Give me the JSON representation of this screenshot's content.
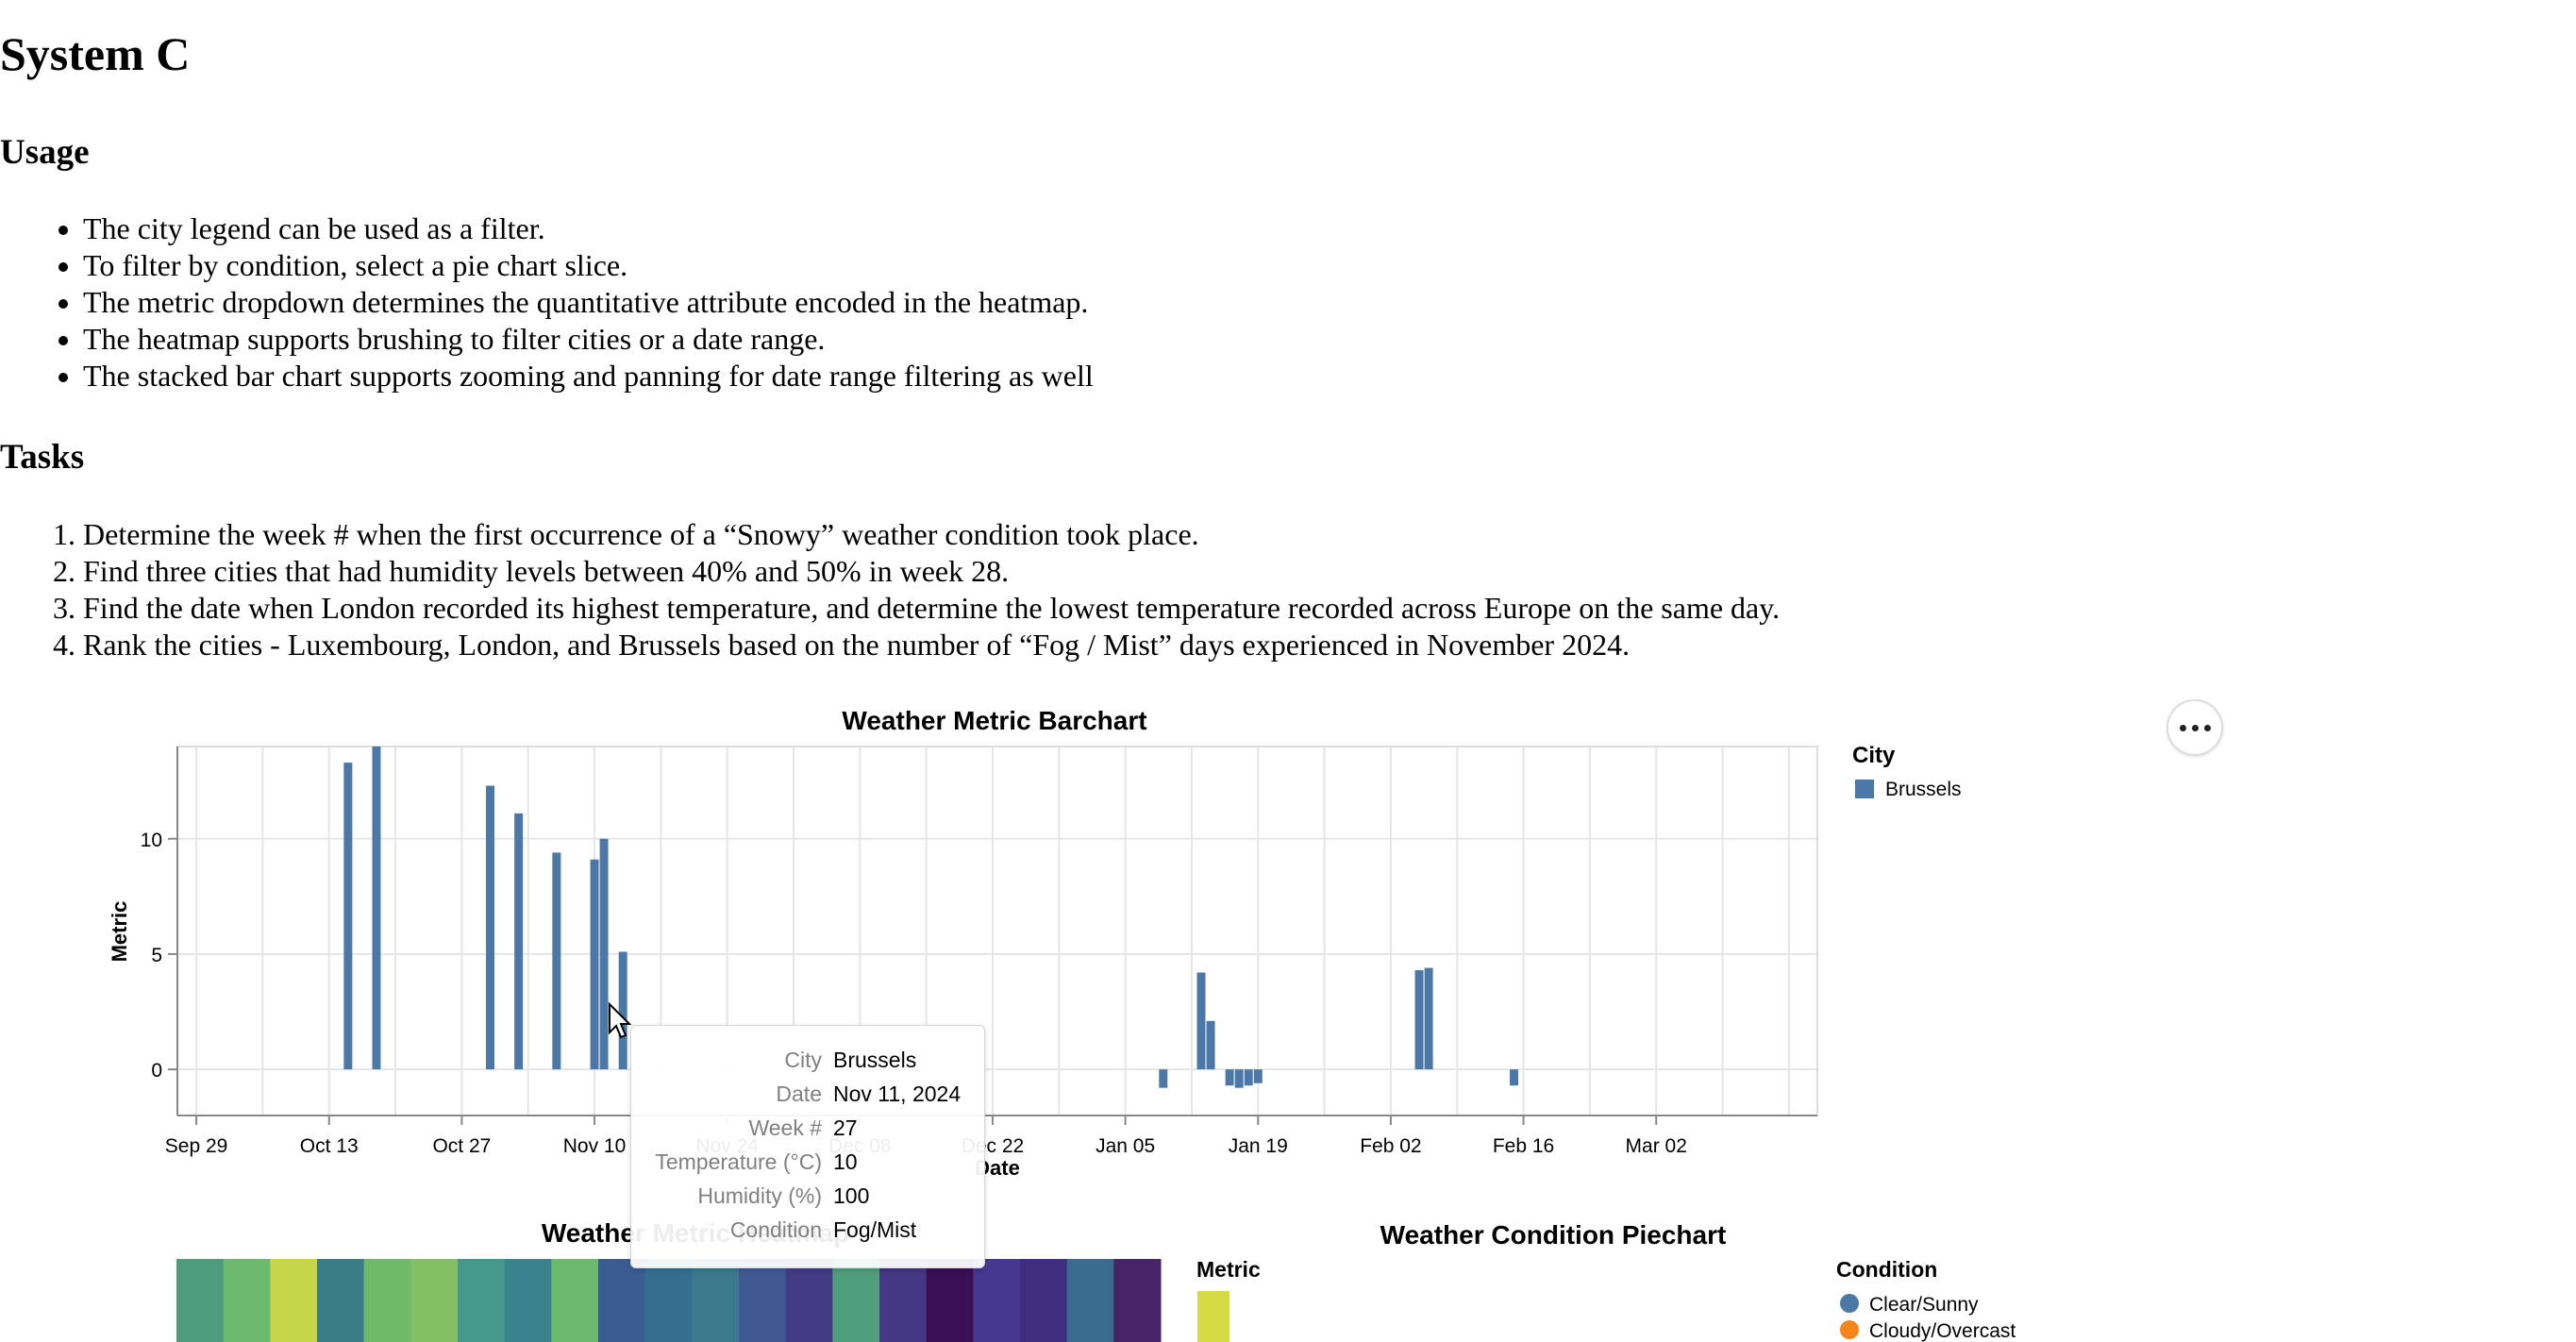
{
  "page_title": "System C",
  "usage": {
    "heading": "Usage",
    "items": [
      "The city legend can be used as a filter.",
      "To filter by condition, select a pie chart slice.",
      "The metric dropdown determines the quantitative attribute encoded in the heatmap.",
      "The heatmap supports brushing to filter cities or a date range.",
      "The stacked bar chart supports zooming and panning for date range filtering as well"
    ]
  },
  "tasks": {
    "heading": "Tasks",
    "items": [
      "Determine the week # when the first occurrence of a “Snowy” weather condition took place.",
      "Find three cities that had humidity levels between 40% and 50% in week 28.",
      "Find the date when London recorded its highest temperature, and determine the lowest temperature recorded across Europe on the same day.",
      "Rank the cities - Luxembourg, London, and Brussels based on the number of “Fog / Mist” days experienced in November 2024."
    ]
  },
  "chart_data": [
    {
      "type": "bar",
      "title": "Weather Metric Barchart",
      "xlabel": "Date",
      "ylabel": "Metric",
      "xlim": [
        "2024-09-27",
        "2025-03-19"
      ],
      "ylim": [
        -2,
        14
      ],
      "y_ticks": [
        0,
        5,
        10
      ],
      "x_ticks": [
        "2024-09-29",
        "2024-10-13",
        "2024-10-27",
        "2024-11-10",
        "2024-11-24",
        "2024-12-08",
        "2024-12-22",
        "2025-01-05",
        "2025-01-19",
        "2025-02-02",
        "2025-02-16",
        "2025-03-02"
      ],
      "x_tick_labels": [
        "Sep 29",
        "Oct 13",
        "Oct 27",
        "Nov 10",
        "Nov 24",
        "Dec 08",
        "Dec 22",
        "Jan 05",
        "Jan 19",
        "Feb 02",
        "Feb 16",
        "Mar 02"
      ],
      "grid": true,
      "color": "#4c78a8",
      "legend": {
        "title": "City",
        "placement": "right",
        "items": [
          {
            "label": "Brussels",
            "color": "#4c78a8"
          }
        ]
      },
      "series": [
        {
          "name": "Brussels",
          "points": [
            {
              "date": "2024-10-15",
              "value": 13.3
            },
            {
              "date": "2024-10-18",
              "value": 14.0
            },
            {
              "date": "2024-10-30",
              "value": 12.3
            },
            {
              "date": "2024-11-02",
              "value": 11.1
            },
            {
              "date": "2024-11-06",
              "value": 9.4
            },
            {
              "date": "2024-11-10",
              "value": 9.1
            },
            {
              "date": "2024-11-11",
              "value": 10.0
            },
            {
              "date": "2024-11-13",
              "value": 5.1
            },
            {
              "date": "2025-01-09",
              "value": -0.8
            },
            {
              "date": "2025-01-13",
              "value": 4.2
            },
            {
              "date": "2025-01-14",
              "value": 2.1
            },
            {
              "date": "2025-01-16",
              "value": -0.7
            },
            {
              "date": "2025-01-17",
              "value": -0.8
            },
            {
              "date": "2025-01-18",
              "value": -0.7
            },
            {
              "date": "2025-01-19",
              "value": -0.6
            },
            {
              "date": "2025-02-05",
              "value": 4.3
            },
            {
              "date": "2025-02-06",
              "value": 4.4
            },
            {
              "date": "2025-02-15",
              "value": -0.7
            }
          ]
        }
      ]
    },
    {
      "type": "heatmap",
      "title": "Weather Metric Heatmap",
      "legend": {
        "title": "Metric",
        "placement": "right"
      },
      "colors": [
        "#4d9c7e",
        "#6bba6f",
        "#c6d54a",
        "#3a7d86",
        "#6eba6a",
        "#83c064",
        "#45988a",
        "#3a828c",
        "#6ab96d",
        "#3a5c91",
        "#356e8f",
        "#3b798d",
        "#405a91",
        "#433c84",
        "#4f9f7c",
        "#443783",
        "#3a0f54",
        "#463790",
        "#3f2e80",
        "#3a6a8e",
        "#462467"
      ]
    },
    {
      "type": "pie",
      "title": "Weather Condition Piechart",
      "legend": {
        "title": "Condition",
        "placement": "right",
        "items": [
          {
            "label": "Clear/Sunny",
            "color": "#4c78a8"
          },
          {
            "label": "Cloudy/Overcast",
            "color": "#f58518"
          }
        ]
      }
    }
  ],
  "tooltip": {
    "rows": [
      {
        "key": "City",
        "value": "Brussels"
      },
      {
        "key": "Date",
        "value": "Nov 11, 2024"
      },
      {
        "key": "Week #",
        "value": "27"
      },
      {
        "key": "Temperature (°C)",
        "value": "10"
      },
      {
        "key": "Humidity (%)",
        "value": "100"
      },
      {
        "key": "Condition",
        "value": "Fog/Mist"
      }
    ]
  },
  "actions_menu": {
    "icon": "ellipsis-icon"
  }
}
